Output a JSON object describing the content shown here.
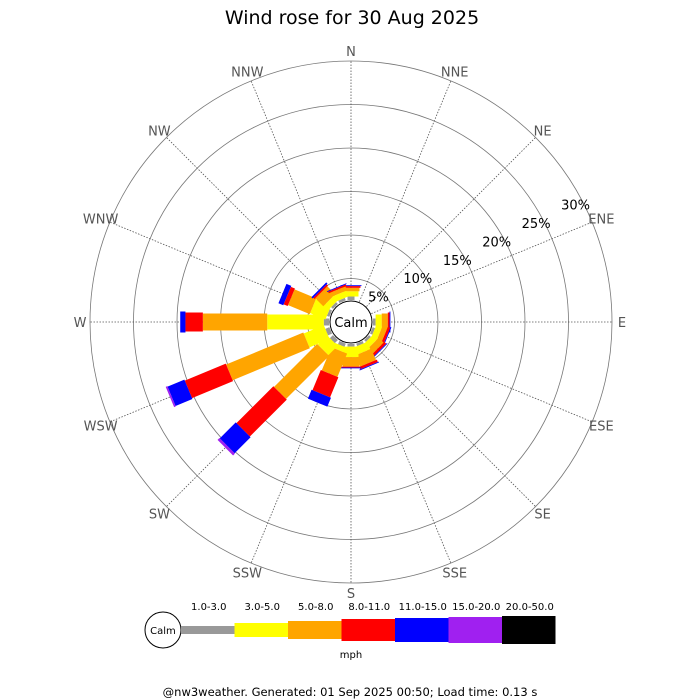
{
  "chart_data": {
    "type": "wind-rose",
    "title": "Wind rose for 30 Aug 2025",
    "directions": [
      "N",
      "NNE",
      "NE",
      "ENE",
      "E",
      "ESE",
      "SE",
      "SSE",
      "S",
      "SSW",
      "SW",
      "WSW",
      "W",
      "WNW",
      "NW",
      "NNW"
    ],
    "radial_ticks": [
      "5%",
      "10%",
      "15%",
      "20%",
      "25%",
      "30%"
    ],
    "radial_tick_values": [
      5,
      10,
      15,
      20,
      25,
      30
    ],
    "radial_max": 30,
    "calm_label": "Calm",
    "unit": "mph",
    "speed_bins": [
      {
        "label": "1.0-3.0",
        "color": "#999999"
      },
      {
        "label": "3.0-5.0",
        "color": "#ffff00"
      },
      {
        "label": "5.0-8.0",
        "color": "#ffa500"
      },
      {
        "label": "8.0-11.0",
        "color": "#ff0000"
      },
      {
        "label": "11.0-15.0",
        "color": "#0000ff"
      },
      {
        "label": "15.0-20.0",
        "color": "#a020f0"
      },
      {
        "label": "20.0-50.0",
        "color": "#000000"
      }
    ],
    "cumulative_percent": {
      "N": [
        0.4,
        1.0,
        1.4,
        1.6,
        1.7,
        1.7,
        1.7
      ],
      "NNE": [
        0.0,
        0.0,
        0.0,
        0.0,
        0.0,
        0.0,
        0.0
      ],
      "NE": [
        0.0,
        0.0,
        0.0,
        0.0,
        0.0,
        0.0,
        0.0
      ],
      "ENE": [
        0.0,
        0.0,
        0.0,
        0.0,
        0.0,
        0.0,
        0.0
      ],
      "E": [
        0.3,
        1.0,
        1.7,
        1.9,
        2.0,
        2.0,
        2.0
      ],
      "ESE": [
        0.3,
        1.0,
        1.6,
        1.9,
        2.0,
        2.0,
        2.0
      ],
      "SE": [
        0.3,
        1.0,
        1.8,
        2.1,
        2.2,
        2.2,
        2.2
      ],
      "SSE": [
        0.3,
        1.2,
        2.6,
        2.9,
        3.0,
        3.0,
        3.0
      ],
      "S": [
        0.3,
        1.5,
        2.6,
        2.7,
        2.8,
        2.8,
        2.8
      ],
      "SSW": [
        0.4,
        1.0,
        3.9,
        6.4,
        7.5,
        7.5,
        7.5
      ],
      "SW": [
        0.5,
        2.0,
        9.0,
        15.0,
        17.6,
        17.9,
        17.9
      ],
      "WSW": [
        0.5,
        3.0,
        12.6,
        17.7,
        19.8,
        20.0,
        20.0
      ],
      "W": [
        0.6,
        7.1,
        14.5,
        16.5,
        17.1,
        17.1,
        17.1
      ],
      "WNW": [
        0.3,
        2.2,
        4.9,
        5.4,
        6.0,
        6.0,
        6.0
      ],
      "NW": [
        0.3,
        1.0,
        2.3,
        2.5,
        2.7,
        2.7,
        2.7
      ],
      "NNW": [
        0.3,
        1.0,
        1.5,
        1.7,
        1.8,
        1.8,
        1.8
      ]
    }
  },
  "footer": "@nw3weather. Generated: 01 Sep 2025 00:50; Load time: 0.13 s"
}
